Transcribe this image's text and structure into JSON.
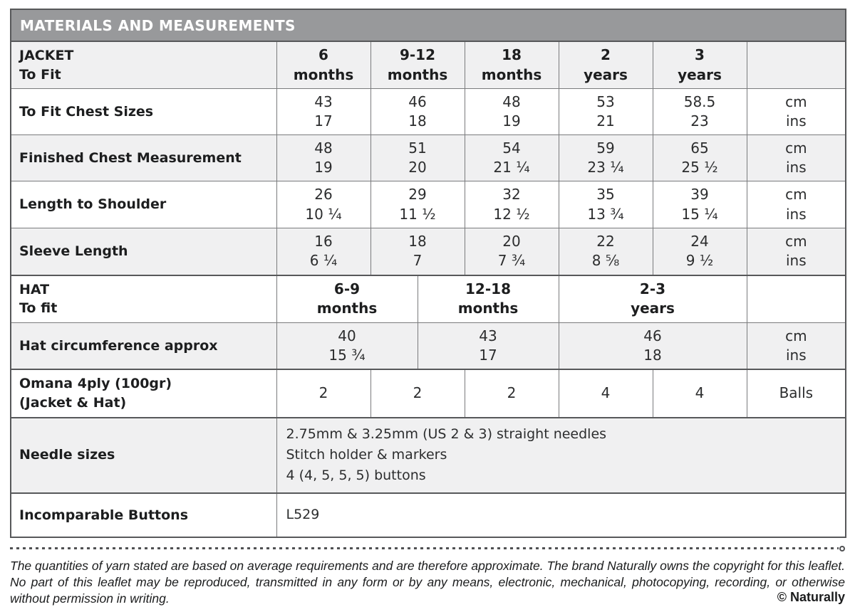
{
  "title": "MATERIALS AND MEASUREMENTS",
  "jacket_header": {
    "label": "JACKET",
    "sublabel": "To Fit",
    "cols": [
      [
        "6",
        "months"
      ],
      [
        "9-12",
        "months"
      ],
      [
        "18",
        "months"
      ],
      [
        "2",
        "years"
      ],
      [
        "3",
        "years"
      ]
    ]
  },
  "hat_header": {
    "label": "HAT",
    "sublabel": "To fit",
    "cols": [
      [
        "6-9",
        "months"
      ],
      [
        "12-18",
        "months"
      ],
      [
        "2-3",
        "years"
      ]
    ]
  },
  "units": {
    "cm": "cm",
    "ins": "ins",
    "balls": "Balls"
  },
  "rows": {
    "chest": {
      "label": "To Fit Chest Sizes",
      "cm": [
        "43",
        "46",
        "48",
        "53",
        "58.5"
      ],
      "ins": [
        "17",
        "18",
        "19",
        "21",
        "23"
      ]
    },
    "finished": {
      "label": "Finished Chest Measurement",
      "cm": [
        "48",
        "51",
        "54",
        "59",
        "65"
      ],
      "ins": [
        "19",
        "20",
        "21 ¼",
        "23 ¼",
        "25 ½"
      ]
    },
    "length": {
      "label": "Length to Shoulder",
      "cm": [
        "26",
        "29",
        "32",
        "35",
        "39"
      ],
      "ins": [
        "10 ¼",
        "11 ½",
        "12 ½",
        "13 ¾",
        "15 ¼"
      ]
    },
    "sleeve": {
      "label": "Sleeve Length",
      "cm": [
        "16",
        "18",
        "20",
        "22",
        "24"
      ],
      "ins": [
        "6 ¼",
        "7",
        "7 ¾",
        "8 ⅝",
        "9 ½"
      ]
    },
    "hat_circ": {
      "label": "Hat circumference approx",
      "cm": [
        "40",
        "43",
        "46"
      ],
      "ins": [
        "15 ¾",
        "17",
        "18"
      ]
    },
    "yarn": {
      "label": "Omana 4ply (100gr)",
      "label2": "(Jacket & Hat)",
      "values": [
        "2",
        "2",
        "2",
        "4",
        "4"
      ]
    },
    "needles": {
      "label": "Needle sizes",
      "lines": [
        "2.75mm & 3.25mm (US 2 & 3) straight needles",
        "Stitch holder & markers",
        "4 (4, 5, 5, 5) buttons"
      ]
    },
    "buttons": {
      "label": "Incomparable Buttons",
      "value": "L529"
    }
  },
  "footer": {
    "disclaimer": "The quantities of yarn stated are based on average requirements and are therefore approximate. The brand Naturally owns the copyright for this leaflet. No part of this leaflet may be reproduced, transmitted in any form or by any means, electronic, mechanical, photocopying, recording, or otherwise without permission in writing.",
    "copyright": "© Naturally"
  },
  "colors": {
    "header_bg": "#98999b",
    "row_alt_bg": "#f0f0f1",
    "border": "#57585a"
  }
}
